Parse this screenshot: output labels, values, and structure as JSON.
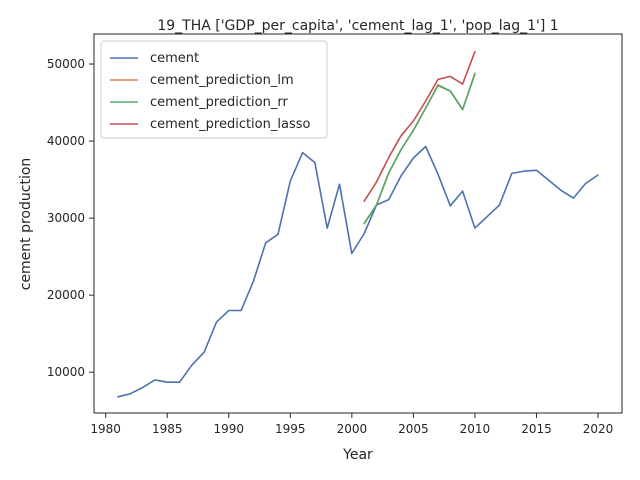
{
  "chart_data": {
    "type": "line",
    "title": "19_THA ['GDP_per_capita', 'cement_lag_1', 'pop_lag_1'] 1",
    "xlabel": "Year",
    "ylabel": "cement production",
    "xlim": [
      1979.05,
      2021.95
    ],
    "ylim": [
      4700,
      53900
    ],
    "xticks": [
      1980,
      1985,
      1990,
      1995,
      2000,
      2005,
      2010,
      2015,
      2020
    ],
    "yticks": [
      10000,
      20000,
      30000,
      40000,
      50000
    ],
    "grid": false,
    "legend_position": "top-left",
    "series": [
      {
        "name": "cement",
        "color": "#4c72b0",
        "x": [
          1981,
          1982,
          1983,
          1984,
          1985,
          1986,
          1987,
          1988,
          1989,
          1990,
          1991,
          1992,
          1993,
          1994,
          1995,
          1996,
          1997,
          1998,
          1999,
          2000,
          2001,
          2002,
          2003,
          2004,
          2005,
          2006,
          2007,
          2008,
          2009,
          2010,
          2011,
          2012,
          2013,
          2014,
          2015,
          2016,
          2017,
          2018,
          2019,
          2020
        ],
        "values": [
          6800,
          7200,
          8000,
          9000,
          8700,
          8700,
          10900,
          12600,
          16500,
          18000,
          18000,
          21800,
          26800,
          27900,
          34800,
          38500,
          37200,
          28700,
          34400,
          25400,
          28000,
          31700,
          32400,
          35500,
          37800,
          39300,
          35700,
          31600,
          33500,
          28700,
          30200,
          31700,
          35800,
          36100,
          36200,
          34900,
          33600,
          32600,
          34500,
          35600
        ]
      },
      {
        "name": "cement_prediction_lm",
        "color": "#dd8452",
        "x": [
          2001,
          2002,
          2003,
          2004,
          2005,
          2006,
          2007,
          2008,
          2009,
          2010
        ],
        "values": [
          29300,
          31700,
          35900,
          38900,
          41400,
          44300,
          47300,
          46500,
          44100,
          48800
        ]
      },
      {
        "name": "cement_prediction_rr",
        "color": "#55a868",
        "x": [
          2001,
          2002,
          2003,
          2004,
          2005,
          2006,
          2007,
          2008,
          2009,
          2010
        ],
        "values": [
          29300,
          31700,
          35900,
          38900,
          41400,
          44300,
          47200,
          46500,
          44100,
          48700
        ]
      },
      {
        "name": "cement_prediction_lasso",
        "color": "#c44e52",
        "x": [
          2001,
          2002,
          2003,
          2004,
          2005,
          2006,
          2007,
          2008,
          2009,
          2010
        ],
        "values": [
          32200,
          34700,
          37900,
          40700,
          42600,
          45200,
          48000,
          48400,
          47400,
          51600
        ]
      }
    ]
  }
}
